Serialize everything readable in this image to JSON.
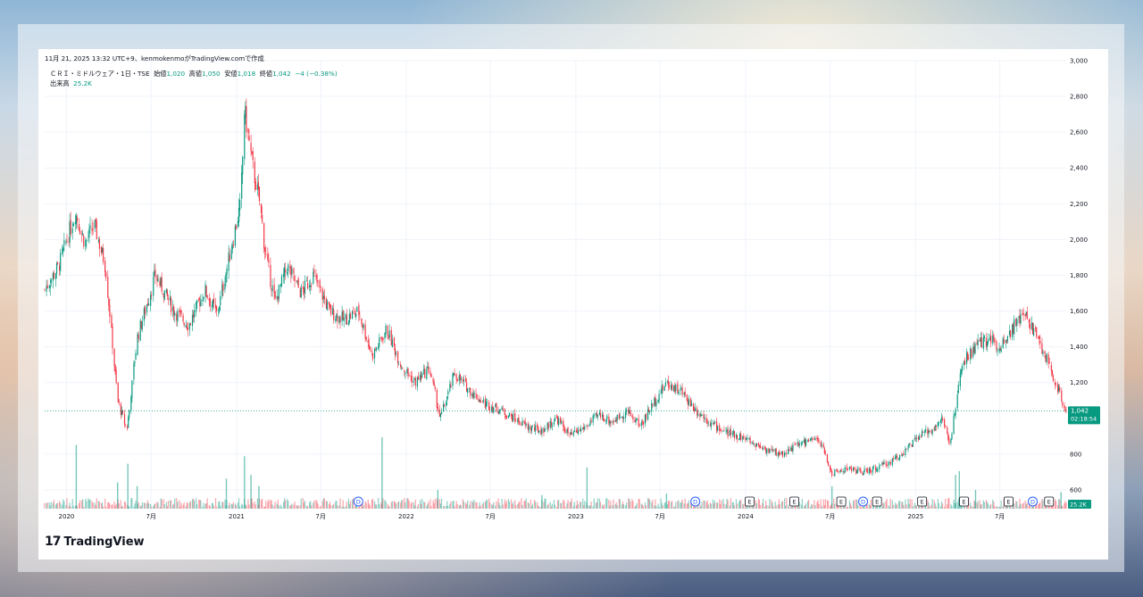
{
  "header": {
    "credit": "11月 21, 2025 13:32 UTC+9、kenmokenmoがTradingView.comで作成",
    "symbol_line": "ＣＲＩ・ミドルウェア・1日・TSE",
    "ohlc": {
      "open_label": "始値",
      "open": "1,020",
      "high_label": "高値",
      "high": "1,050",
      "low_label": "安値",
      "low": "1,018",
      "close_label": "終値",
      "close": "1,042",
      "change": "−4 (−0.38%)"
    },
    "volume_label": "出来高",
    "volume_value": "25.2K"
  },
  "price_tag": {
    "price": "1,042",
    "countdown": "02:18:54",
    "volume_tag": "25.2K"
  },
  "footer": {
    "brand": "TradingView"
  },
  "colors": {
    "up": "#089981",
    "down": "#f23645",
    "grid": "#f0f3fa",
    "event_blue": "#2962ff"
  },
  "chart_data": {
    "type": "candlestick",
    "y_ticks": [
      "3,000",
      "2,800",
      "2,600",
      "2,400",
      "2,200",
      "2,000",
      "1,800",
      "1,600",
      "1,400",
      "1,200",
      "800",
      "600"
    ],
    "ylim": [
      495,
      3000
    ],
    "x_range": [
      "2019-11-15",
      "2025-11-21"
    ],
    "x_ticks": [
      {
        "label": "2020",
        "date": "2020-01-01"
      },
      {
        "label": "7月",
        "date": "2020-07-01"
      },
      {
        "label": "2021",
        "date": "2021-01-01"
      },
      {
        "label": "7月",
        "date": "2021-07-01"
      },
      {
        "label": "2022",
        "date": "2022-01-01"
      },
      {
        "label": "7月",
        "date": "2022-07-01"
      },
      {
        "label": "2023",
        "date": "2023-01-01"
      },
      {
        "label": "7月",
        "date": "2023-07-01"
      },
      {
        "label": "2024",
        "date": "2024-01-01"
      },
      {
        "label": "7月",
        "date": "2024-07-01"
      },
      {
        "label": "2025",
        "date": "2025-01-01"
      },
      {
        "label": "7月",
        "date": "2025-07-01"
      }
    ],
    "close_path": [
      [
        "2019-11-15",
        1720
      ],
      [
        "2019-12-15",
        1850
      ],
      [
        "2020-01-20",
        2150
      ],
      [
        "2020-02-10",
        1980
      ],
      [
        "2020-03-01",
        2080
      ],
      [
        "2020-03-25",
        1850
      ],
      [
        "2020-04-20",
        1100
      ],
      [
        "2020-05-10",
        930
      ],
      [
        "2020-06-01",
        1450
      ],
      [
        "2020-07-10",
        1800
      ],
      [
        "2020-08-20",
        1600
      ],
      [
        "2020-09-20",
        1520
      ],
      [
        "2020-10-25",
        1720
      ],
      [
        "2020-11-20",
        1580
      ],
      [
        "2020-12-20",
        1950
      ],
      [
        "2021-01-10",
        2200
      ],
      [
        "2021-01-18",
        2720
      ],
      [
        "2021-02-05",
        2400
      ],
      [
        "2021-02-20",
        2200
      ],
      [
        "2021-03-05",
        1900
      ],
      [
        "2021-03-25",
        1650
      ],
      [
        "2021-04-20",
        1850
      ],
      [
        "2021-05-20",
        1700
      ],
      [
        "2021-06-15",
        1800
      ],
      [
        "2021-07-20",
        1600
      ],
      [
        "2021-08-20",
        1550
      ],
      [
        "2021-09-20",
        1600
      ],
      [
        "2021-10-20",
        1350
      ],
      [
        "2021-11-20",
        1500
      ],
      [
        "2021-12-20",
        1300
      ],
      [
        "2022-01-20",
        1200
      ],
      [
        "2022-02-20",
        1280
      ],
      [
        "2022-03-15",
        1000
      ],
      [
        "2022-04-15",
        1250
      ],
      [
        "2022-05-20",
        1150
      ],
      [
        "2022-06-20",
        1080
      ],
      [
        "2022-07-20",
        1050
      ],
      [
        "2022-08-20",
        1000
      ],
      [
        "2022-09-20",
        950
      ],
      [
        "2022-10-20",
        930
      ],
      [
        "2022-11-20",
        1000
      ],
      [
        "2022-12-20",
        900
      ],
      [
        "2023-01-20",
        950
      ],
      [
        "2023-02-20",
        1020
      ],
      [
        "2023-03-20",
        980
      ],
      [
        "2023-04-20",
        1040
      ],
      [
        "2023-05-20",
        960
      ],
      [
        "2023-06-20",
        1100
      ],
      [
        "2023-07-15",
        1200
      ],
      [
        "2023-08-15",
        1150
      ],
      [
        "2023-09-15",
        1050
      ],
      [
        "2023-10-20",
        970
      ],
      [
        "2023-11-20",
        920
      ],
      [
        "2023-12-20",
        900
      ],
      [
        "2024-01-20",
        860
      ],
      [
        "2024-02-20",
        820
      ],
      [
        "2024-03-20",
        800
      ],
      [
        "2024-04-20",
        850
      ],
      [
        "2024-05-20",
        880
      ],
      [
        "2024-06-10",
        870
      ],
      [
        "2024-07-05",
        690
      ],
      [
        "2024-08-05",
        720
      ],
      [
        "2024-09-10",
        700
      ],
      [
        "2024-10-10",
        720
      ],
      [
        "2024-11-10",
        760
      ],
      [
        "2024-12-10",
        820
      ],
      [
        "2025-01-10",
        900
      ],
      [
        "2025-02-10",
        950
      ],
      [
        "2025-03-01",
        1000
      ],
      [
        "2025-03-15",
        850
      ],
      [
        "2025-03-28",
        1050
      ],
      [
        "2025-04-10",
        1300
      ],
      [
        "2025-05-10",
        1400
      ],
      [
        "2025-06-10",
        1450
      ],
      [
        "2025-07-01",
        1400
      ],
      [
        "2025-08-01",
        1520
      ],
      [
        "2025-08-25",
        1580
      ],
      [
        "2025-09-20",
        1450
      ],
      [
        "2025-10-15",
        1300
      ],
      [
        "2025-11-05",
        1150
      ],
      [
        "2025-11-21",
        1042
      ]
    ],
    "last_price": 1042,
    "event_markers": [
      {
        "type": "D",
        "date": "2021-09-20"
      },
      {
        "type": "D",
        "date": "2023-09-15"
      },
      {
        "type": "E",
        "date": "2024-01-10"
      },
      {
        "type": "E",
        "date": "2024-04-15"
      },
      {
        "type": "E",
        "date": "2024-07-25"
      },
      {
        "type": "D",
        "date": "2024-09-10"
      },
      {
        "type": "E",
        "date": "2024-10-10"
      },
      {
        "type": "E",
        "date": "2025-01-15"
      },
      {
        "type": "E",
        "date": "2025-04-15"
      },
      {
        "type": "E",
        "date": "2025-07-20"
      },
      {
        "type": "D",
        "date": "2025-09-10"
      },
      {
        "type": "E",
        "date": "2025-10-15"
      }
    ],
    "volume_spikes": [
      [
        "2020-01-22",
        0.85
      ],
      [
        "2020-04-20",
        0.35
      ],
      [
        "2020-05-12",
        0.6
      ],
      [
        "2020-06-01",
        0.3
      ],
      [
        "2020-12-10",
        0.4
      ],
      [
        "2021-01-18",
        0.7
      ],
      [
        "2021-02-01",
        0.45
      ],
      [
        "2021-02-18",
        0.3
      ],
      [
        "2021-11-10",
        0.95
      ],
      [
        "2022-03-10",
        0.25
      ],
      [
        "2022-10-20",
        0.18
      ],
      [
        "2023-01-25",
        0.55
      ],
      [
        "2023-07-15",
        0.2
      ],
      [
        "2024-07-05",
        0.3
      ],
      [
        "2025-03-28",
        0.45
      ],
      [
        "2025-04-05",
        0.5
      ],
      [
        "2025-05-10",
        0.25
      ],
      [
        "2025-11-10",
        0.22
      ]
    ]
  }
}
